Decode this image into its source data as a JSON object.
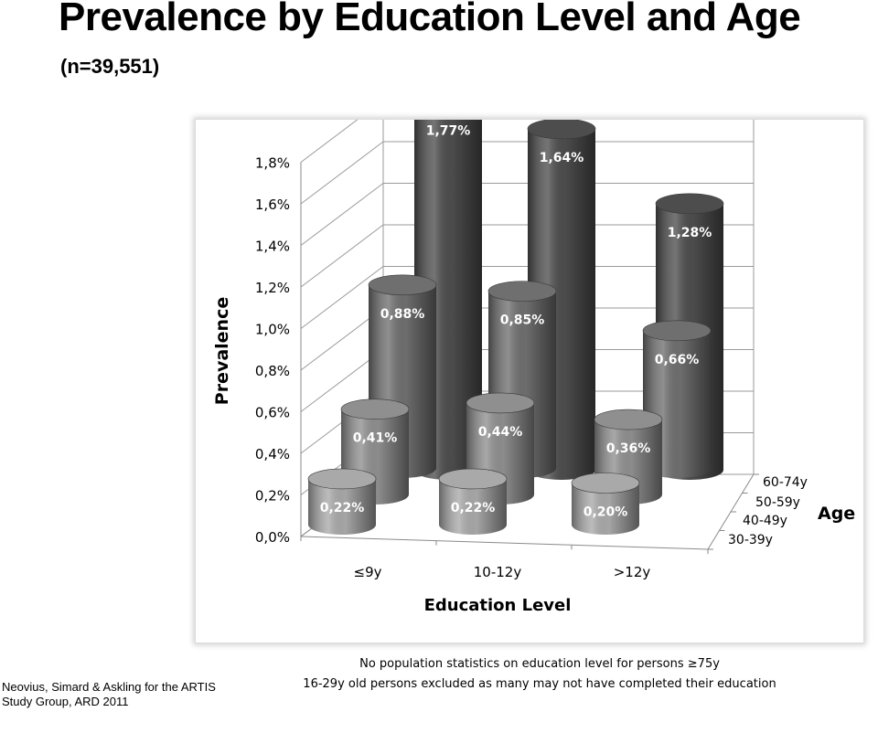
{
  "title": "Prevalence by Education Level and Age",
  "subtitle": "(n=39,551)",
  "citation": "Neovius, Simard & Askling for the ARTIS Study Group, ARD 2011",
  "notes": [
    "No population statistics on education level for persons ≥75y",
    "16-29y old persons excluded as many may not have completed their education"
  ],
  "chart_data": {
    "type": "bar",
    "subtype": "3d-cylinder",
    "xlabel": "Education Level",
    "ylabel": "Prevalence",
    "zlabel": "Age",
    "categories": [
      "≤9y",
      "10-12y",
      ">12y"
    ],
    "y_ticks": [
      "0,0%",
      "0,2%",
      "0,4%",
      "0,6%",
      "0,8%",
      "1,0%",
      "1,2%",
      "1,4%",
      "1,6%",
      "1,8%"
    ],
    "ylim": [
      0,
      1.8
    ],
    "grid": true,
    "series": [
      {
        "name": "30-39y",
        "values": [
          0.22,
          0.22,
          0.2
        ],
        "labels": [
          "0,22%",
          "0,22%",
          "0,20%"
        ],
        "color": "#a9a9a9"
      },
      {
        "name": "40-49y",
        "values": [
          0.41,
          0.44,
          0.36
        ],
        "labels": [
          "0,41%",
          "0,44%",
          "0,36%"
        ],
        "color": "#8f8f8f"
      },
      {
        "name": "50-59y",
        "values": [
          0.88,
          0.85,
          0.66
        ],
        "labels": [
          "0,88%",
          "0,85%",
          "0,66%"
        ],
        "color": "#6f6f6f"
      },
      {
        "name": "60-74y",
        "values": [
          1.77,
          1.64,
          1.28
        ],
        "labels": [
          "1,77%",
          "1,64%",
          "1,28%"
        ],
        "color": "#4d4d4d"
      }
    ]
  }
}
